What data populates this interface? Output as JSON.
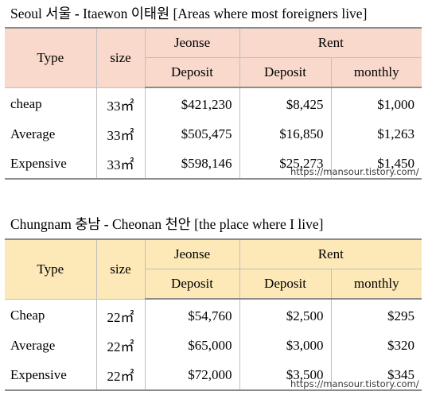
{
  "seoul": {
    "title": {
      "en": "Seoul",
      "ko": "서울",
      "dash": " - ",
      "district_en": "Itaewon",
      "district_ko": "이태원",
      "note": "[Areas where most foreigners live]"
    },
    "headers": {
      "type": "Type",
      "size": "size",
      "jeonse": "Jeonse",
      "rent": "Rent",
      "jeonse_deposit": "Deposit",
      "rent_deposit": "Deposit",
      "rent_monthly": "monthly"
    },
    "rows": [
      {
        "type": "cheap",
        "size": "33㎡",
        "jeonse_deposit": "$421,230",
        "rent_deposit": "$8,425",
        "rent_monthly": "$1,000"
      },
      {
        "type": "Average",
        "size": "33㎡",
        "jeonse_deposit": "$505,475",
        "rent_deposit": "$16,850",
        "rent_monthly": "$1,263"
      },
      {
        "type": "Expensive",
        "size": "33㎡",
        "jeonse_deposit": "$598,146",
        "rent_deposit": "$25,273",
        "rent_monthly": "$1,450"
      }
    ],
    "watermark": "https://mansour.tistory.com/",
    "header_color": "#f9d9cc"
  },
  "chungnam": {
    "title": {
      "en": "Chungnam",
      "ko": "충남",
      "dash": " - ",
      "district_en": "Cheonan",
      "district_ko": "천안",
      "note": "[the place where I live]"
    },
    "headers": {
      "type": "Type",
      "size": "size",
      "jeonse": "Jeonse",
      "rent": "Rent",
      "jeonse_deposit": "Deposit",
      "rent_deposit": "Deposit",
      "rent_monthly": "monthly"
    },
    "rows": [
      {
        "type": "Cheap",
        "size": "22㎡",
        "jeonse_deposit": "$54,760",
        "rent_deposit": "$2,500",
        "rent_monthly": "$295"
      },
      {
        "type": "Average",
        "size": "22㎡",
        "jeonse_deposit": "$65,000",
        "rent_deposit": "$3,000",
        "rent_monthly": "$320"
      },
      {
        "type": "Expensive",
        "size": "22㎡",
        "jeonse_deposit": "$72,000",
        "rent_deposit": "$3,500",
        "rent_monthly": "$345"
      }
    ],
    "watermark": "https://mansour.tistory.com/",
    "header_color": "#fde9b8"
  }
}
